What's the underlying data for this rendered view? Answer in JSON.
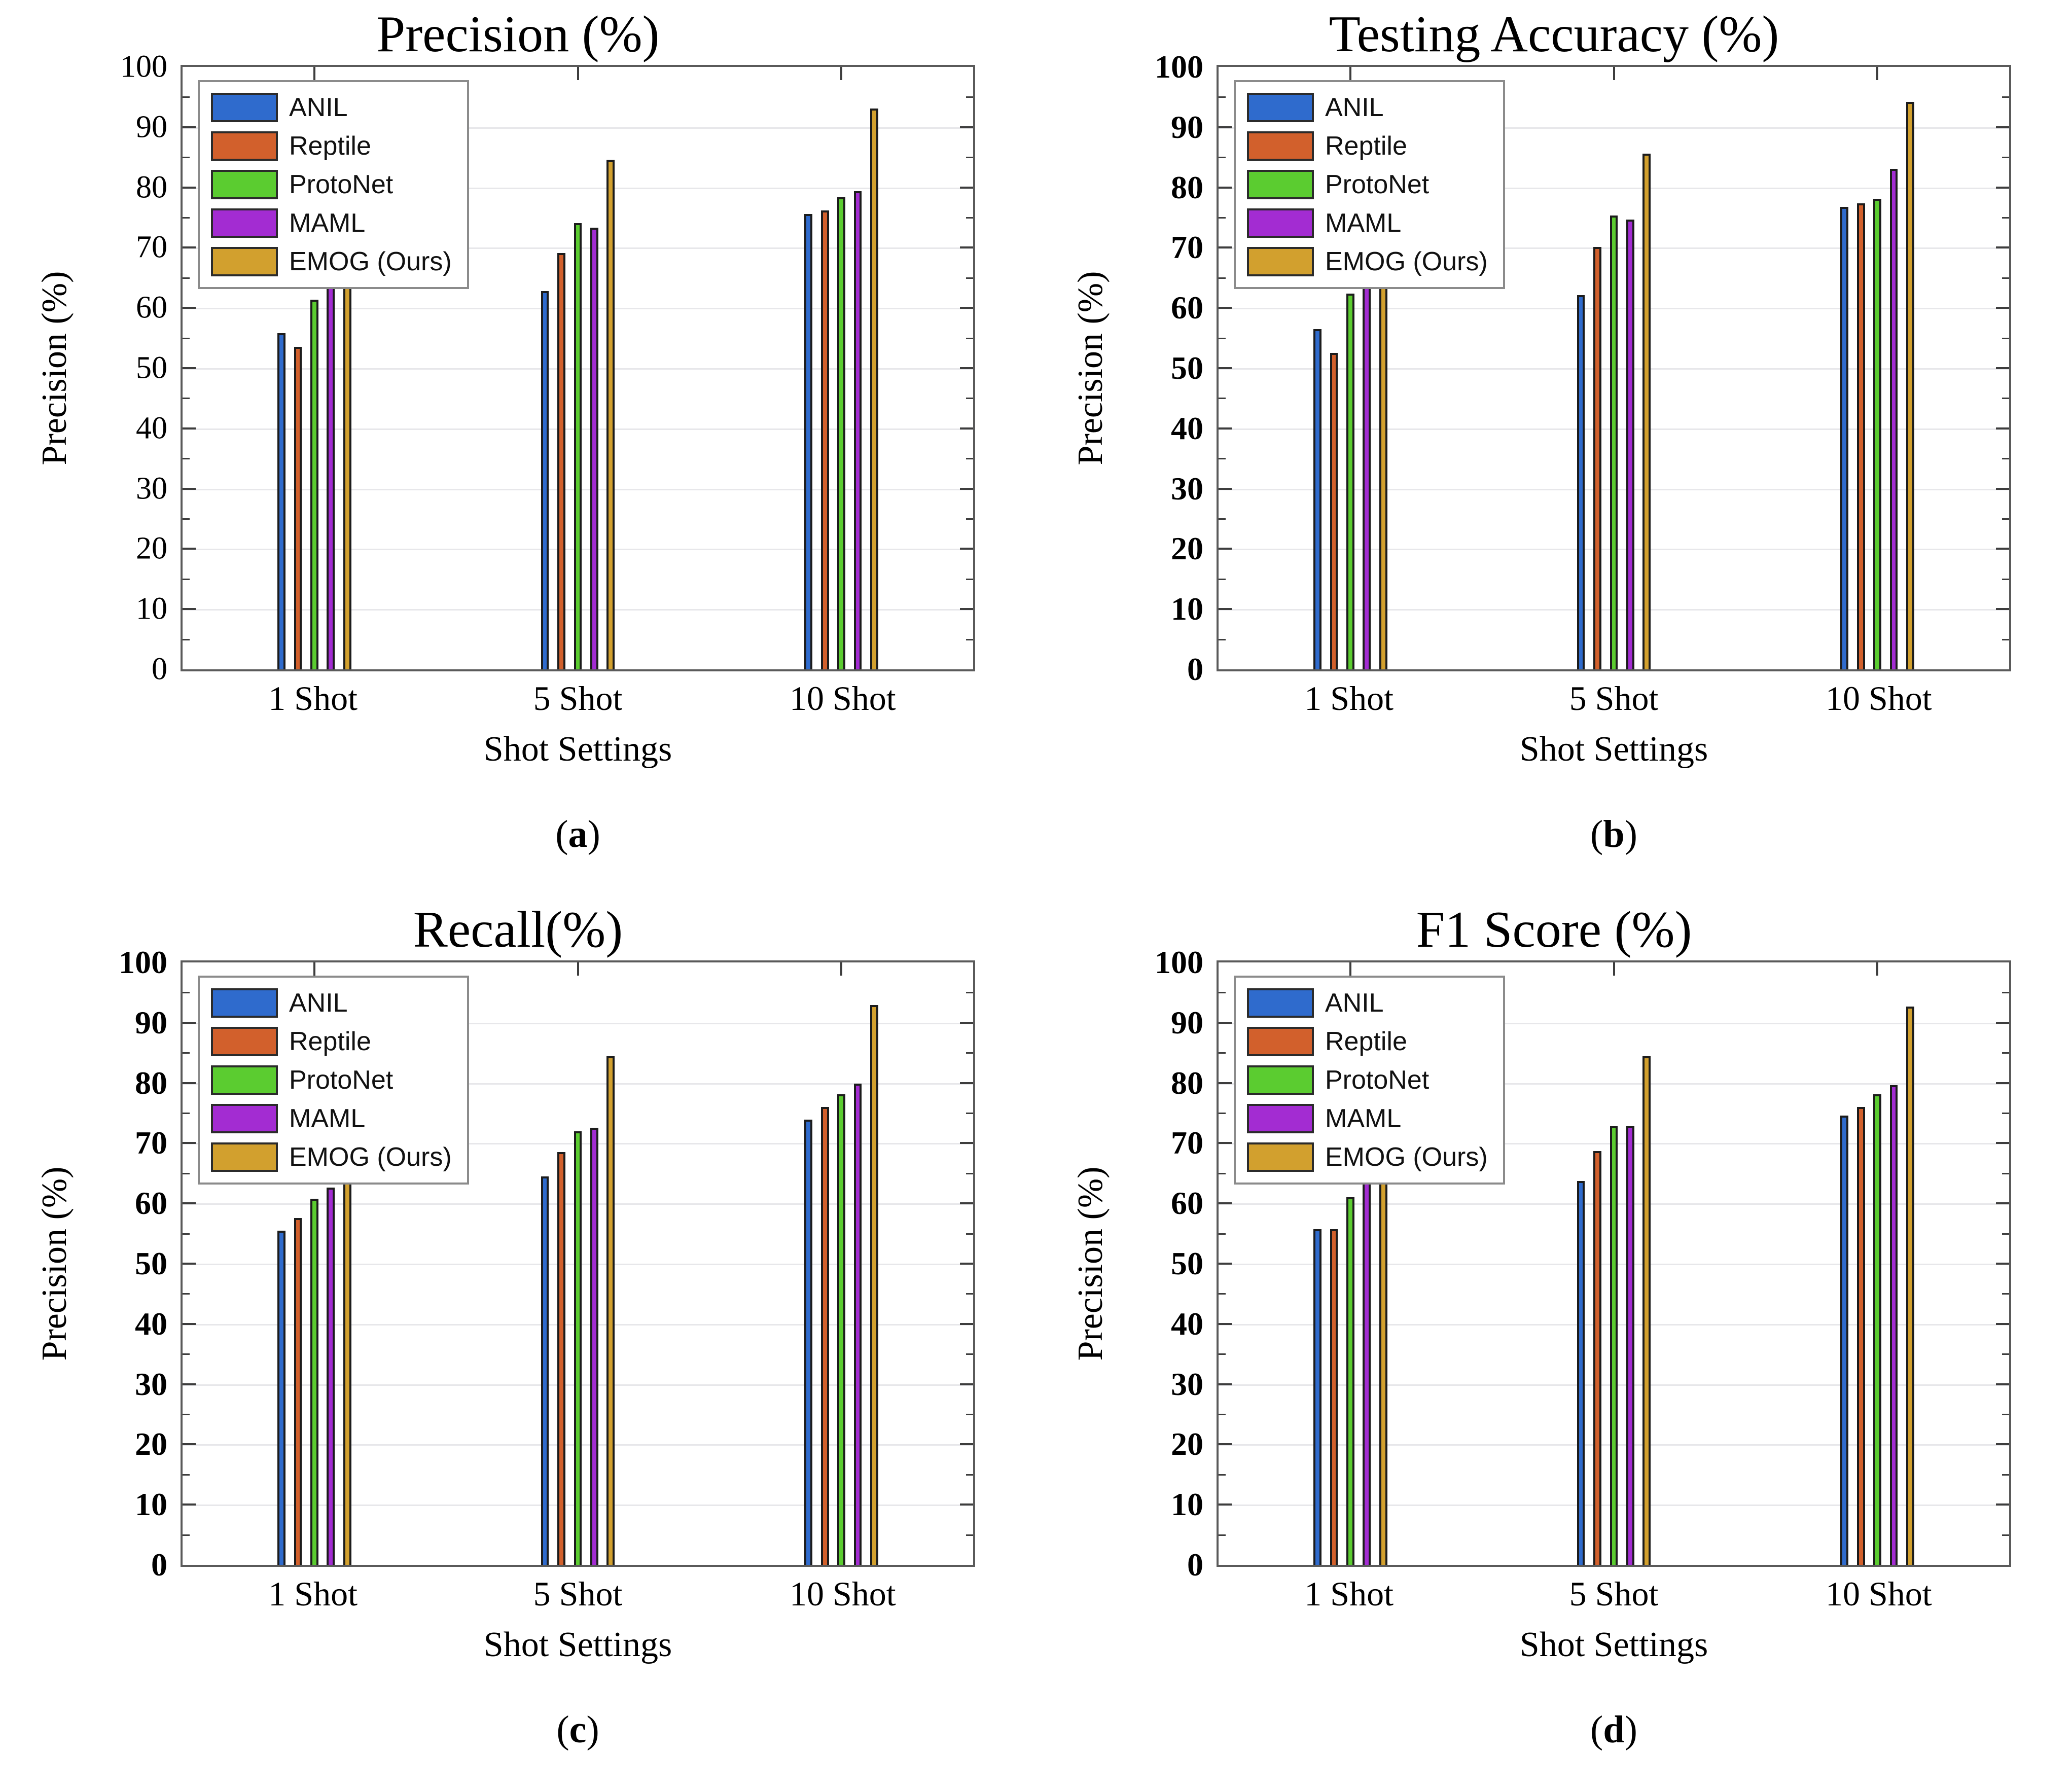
{
  "figure": {
    "background": "#ffffff",
    "categories": [
      "1 Shot",
      "5 Shot",
      "10 Shot"
    ],
    "xlabel": "Shot Settings",
    "ylabel": "Precision (%)",
    "ylim": [
      0,
      100
    ],
    "yticks": [
      0,
      10,
      20,
      30,
      40,
      50,
      60,
      70,
      80,
      90,
      100
    ],
    "grid": true,
    "legend_position": "upper left",
    "series_colors": {
      "ANIL": "#2f6bcd",
      "Reptile": "#d2602c",
      "ProtoNet": "#5bcc30",
      "MAML": "#a32cd2",
      "EMOG (Ours)": "#d2a02e"
    },
    "bar_edge_color": "#1c1c1c"
  },
  "chart_data": [
    {
      "type": "bar",
      "panel_letter": "a",
      "title": "Precision (%)",
      "xlabel": "Shot Settings",
      "ylabel": "Precision (%)",
      "ylim": [
        0,
        100
      ],
      "grid": true,
      "legend_position": "upper left",
      "categories": [
        "1 Shot",
        "5 Shot",
        "10 Shot"
      ],
      "series": [
        {
          "name": "ANIL",
          "color": "#2f6bcd",
          "values": [
            55.8,
            62.8,
            75.6
          ]
        },
        {
          "name": "Reptile",
          "color": "#d2602c",
          "values": [
            53.5,
            69.1,
            76.2
          ]
        },
        {
          "name": "ProtoNet",
          "color": "#5bcc30",
          "values": [
            61.4,
            74.1,
            78.4
          ]
        },
        {
          "name": "MAML",
          "color": "#a32cd2",
          "values": [
            65.2,
            73.3,
            79.4
          ]
        },
        {
          "name": "EMOG (Ours)",
          "color": "#d2a02e",
          "values": [
            70.9,
            84.6,
            93.1
          ]
        }
      ]
    },
    {
      "type": "bar",
      "panel_letter": "b",
      "title": "Testing Accuracy (%)",
      "xlabel": "Shot Settings",
      "ylabel": "Precision (%)",
      "ylim": [
        0,
        100
      ],
      "grid": true,
      "legend_position": "upper left",
      "categories": [
        "1 Shot",
        "5 Shot",
        "10 Shot"
      ],
      "series": [
        {
          "name": "ANIL",
          "color": "#2f6bcd",
          "values": [
            56.5,
            62.1,
            76.8
          ]
        },
        {
          "name": "Reptile",
          "color": "#d2602c",
          "values": [
            52.5,
            70.1,
            77.4
          ]
        },
        {
          "name": "ProtoNet",
          "color": "#5bcc30",
          "values": [
            62.4,
            75.3,
            78.1
          ]
        },
        {
          "name": "MAML",
          "color": "#a32cd2",
          "values": [
            64.9,
            74.7,
            83.1
          ]
        },
        {
          "name": "EMOG (Ours)",
          "color": "#d2a02e",
          "values": [
            72.0,
            85.6,
            94.2
          ]
        }
      ]
    },
    {
      "type": "bar",
      "panel_letter": "c",
      "title": "Recall(%)",
      "xlabel": "Shot Settings",
      "ylabel": "Precision (%)",
      "ylim": [
        0,
        100
      ],
      "grid": true,
      "legend_position": "upper left",
      "categories": [
        "1 Shot",
        "5 Shot",
        "10 Shot"
      ],
      "series": [
        {
          "name": "ANIL",
          "color": "#2f6bcd",
          "values": [
            55.5,
            64.5,
            73.9
          ]
        },
        {
          "name": "Reptile",
          "color": "#d2602c",
          "values": [
            57.6,
            68.5,
            76.0
          ]
        },
        {
          "name": "ProtoNet",
          "color": "#5bcc30",
          "values": [
            60.8,
            72.0,
            78.1
          ]
        },
        {
          "name": "MAML",
          "color": "#a32cd2",
          "values": [
            62.6,
            72.6,
            79.9
          ]
        },
        {
          "name": "EMOG (Ours)",
          "color": "#d2a02e",
          "values": [
            70.3,
            84.4,
            92.9
          ]
        }
      ]
    },
    {
      "type": "bar",
      "panel_letter": "d",
      "title": "F1 Score (%)",
      "xlabel": "Shot Settings",
      "ylabel": "Precision (%)",
      "ylim": [
        0,
        100
      ],
      "grid": true,
      "legend_position": "upper left",
      "categories": [
        "1 Shot",
        "5 Shot",
        "10 Shot"
      ],
      "series": [
        {
          "name": "ANIL",
          "color": "#2f6bcd",
          "values": [
            55.7,
            63.7,
            74.6
          ]
        },
        {
          "name": "Reptile",
          "color": "#d2602c",
          "values": [
            55.7,
            68.7,
            76.0
          ]
        },
        {
          "name": "ProtoNet",
          "color": "#5bcc30",
          "values": [
            61.0,
            72.8,
            78.1
          ]
        },
        {
          "name": "MAML",
          "color": "#a32cd2",
          "values": [
            63.7,
            72.8,
            79.6
          ]
        },
        {
          "name": "EMOG (Ours)",
          "color": "#d2a02e",
          "values": [
            70.5,
            84.4,
            92.7
          ]
        }
      ]
    }
  ]
}
